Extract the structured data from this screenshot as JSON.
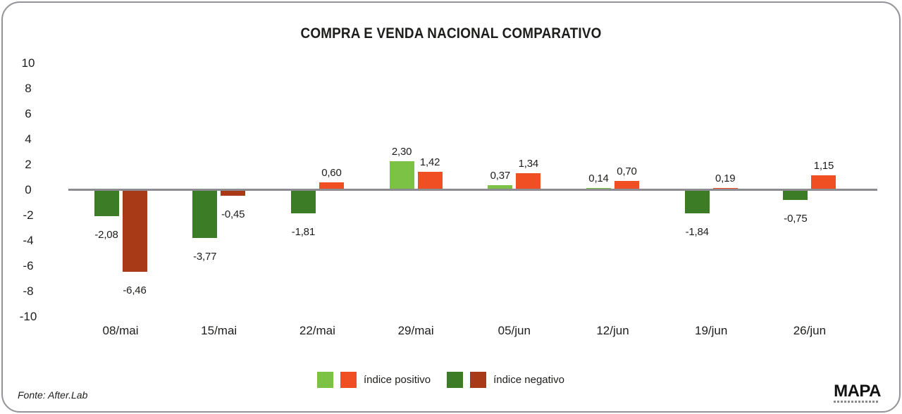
{
  "chart_data": {
    "type": "bar",
    "title": "COMPRA E VENDA NACIONAL COMPARATIVO",
    "categories": [
      "08/mai",
      "15/mai",
      "22/mai",
      "29/mai",
      "05/jun",
      "12/jun",
      "19/jun",
      "26/jun"
    ],
    "series": [
      {
        "name": "green-series",
        "values": [
          -2.08,
          -3.77,
          -1.81,
          2.3,
          0.37,
          0.14,
          -1.84,
          -0.75
        ],
        "labels": [
          "-2,08",
          "-3,77",
          "-1,81",
          "2,30",
          "0,37",
          "0,14",
          "-1,84",
          "-0,75"
        ]
      },
      {
        "name": "orange-series",
        "values": [
          -6.46,
          -0.45,
          0.6,
          1.42,
          1.34,
          0.7,
          0.19,
          1.15
        ],
        "labels": [
          "-6,46",
          "-0,45",
          "0,60",
          "1,42",
          "1,34",
          "0,70",
          "0,19",
          "1,15"
        ]
      }
    ],
    "ylim": [
      -10,
      10
    ],
    "ytick_values": [
      10,
      8,
      6,
      4,
      2,
      0,
      -2,
      -4,
      -6,
      -8,
      -10
    ],
    "ytick_labels": [
      "10",
      "8",
      "6",
      "4",
      "2",
      "0",
      "-2",
      "-4",
      "-6",
      "-8",
      "-10"
    ],
    "grid": false,
    "legend_position": "bottom",
    "legend": [
      {
        "label": "índice positivo",
        "swatches": [
          "#7cc245",
          "#f04f23"
        ]
      },
      {
        "label": "índice negativo",
        "swatches": [
          "#3c7c27",
          "#a83a17"
        ]
      }
    ],
    "colors": {
      "positive_green": "#7cc245",
      "positive_orange": "#f04f23",
      "negative_green": "#3c7c27",
      "negative_red": "#a83a17",
      "axis_line": "#8c8c92",
      "text": "#1d1d1b"
    }
  },
  "footer": {
    "source": "Fonte: After.Lab",
    "logo_text": "MAPA"
  }
}
